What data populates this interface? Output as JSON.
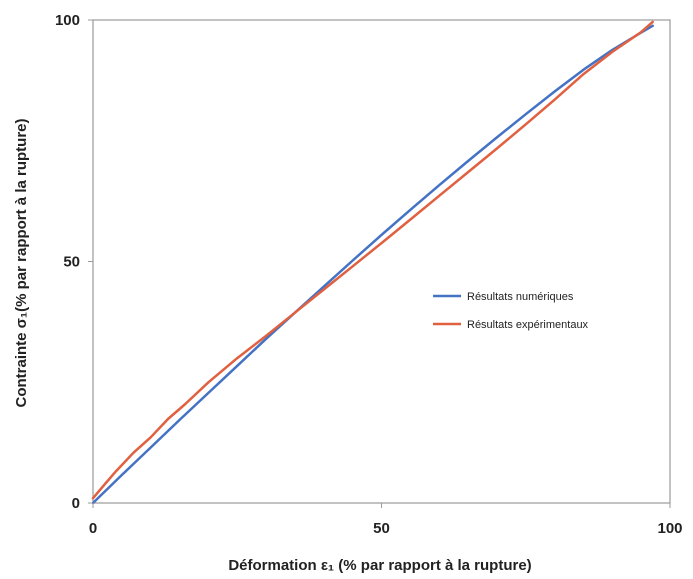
{
  "chart_data": {
    "type": "line",
    "title": "",
    "xlabel": "Déformation ε₁ (% par rapport à la rupture)",
    "ylabel": "Contrainte σ₁(% par rapport à la rupture)",
    "xlim": [
      0,
      100
    ],
    "ylim": [
      0,
      100
    ],
    "xticks": [
      0,
      50,
      100
    ],
    "yticks": [
      0,
      50,
      100
    ],
    "grid": false,
    "legend_position": "right",
    "series": [
      {
        "name": "Résultats numériques",
        "color": "#4472c4",
        "x": [
          0,
          5,
          10,
          15,
          20,
          25,
          30,
          35,
          40,
          45,
          50,
          55,
          60,
          65,
          70,
          75,
          80,
          85,
          90,
          95,
          97
        ],
        "y": [
          0,
          5.8,
          11.5,
          17.2,
          22.8,
          28.4,
          34,
          39.4,
          44.8,
          50.2,
          55.5,
          60.7,
          65.8,
          70.8,
          75.7,
          80.5,
          85.2,
          89.7,
          93.8,
          97.4,
          98.8
        ]
      },
      {
        "name": "Résultats expérimentaux",
        "color": "#e06040",
        "x": [
          0,
          2,
          4,
          7,
          10,
          13,
          16,
          20,
          25,
          30,
          35,
          40,
          45,
          50,
          55,
          60,
          65,
          70,
          75,
          80,
          85,
          90,
          95,
          97
        ],
        "y": [
          1,
          3.8,
          6.6,
          10.4,
          13.6,
          17.4,
          20.5,
          25,
          30,
          34.6,
          39.4,
          44.2,
          49,
          53.8,
          58.7,
          63.6,
          68.5,
          73.4,
          78.4,
          83.5,
          88.8,
          93.4,
          97.5,
          99.6
        ]
      }
    ]
  }
}
